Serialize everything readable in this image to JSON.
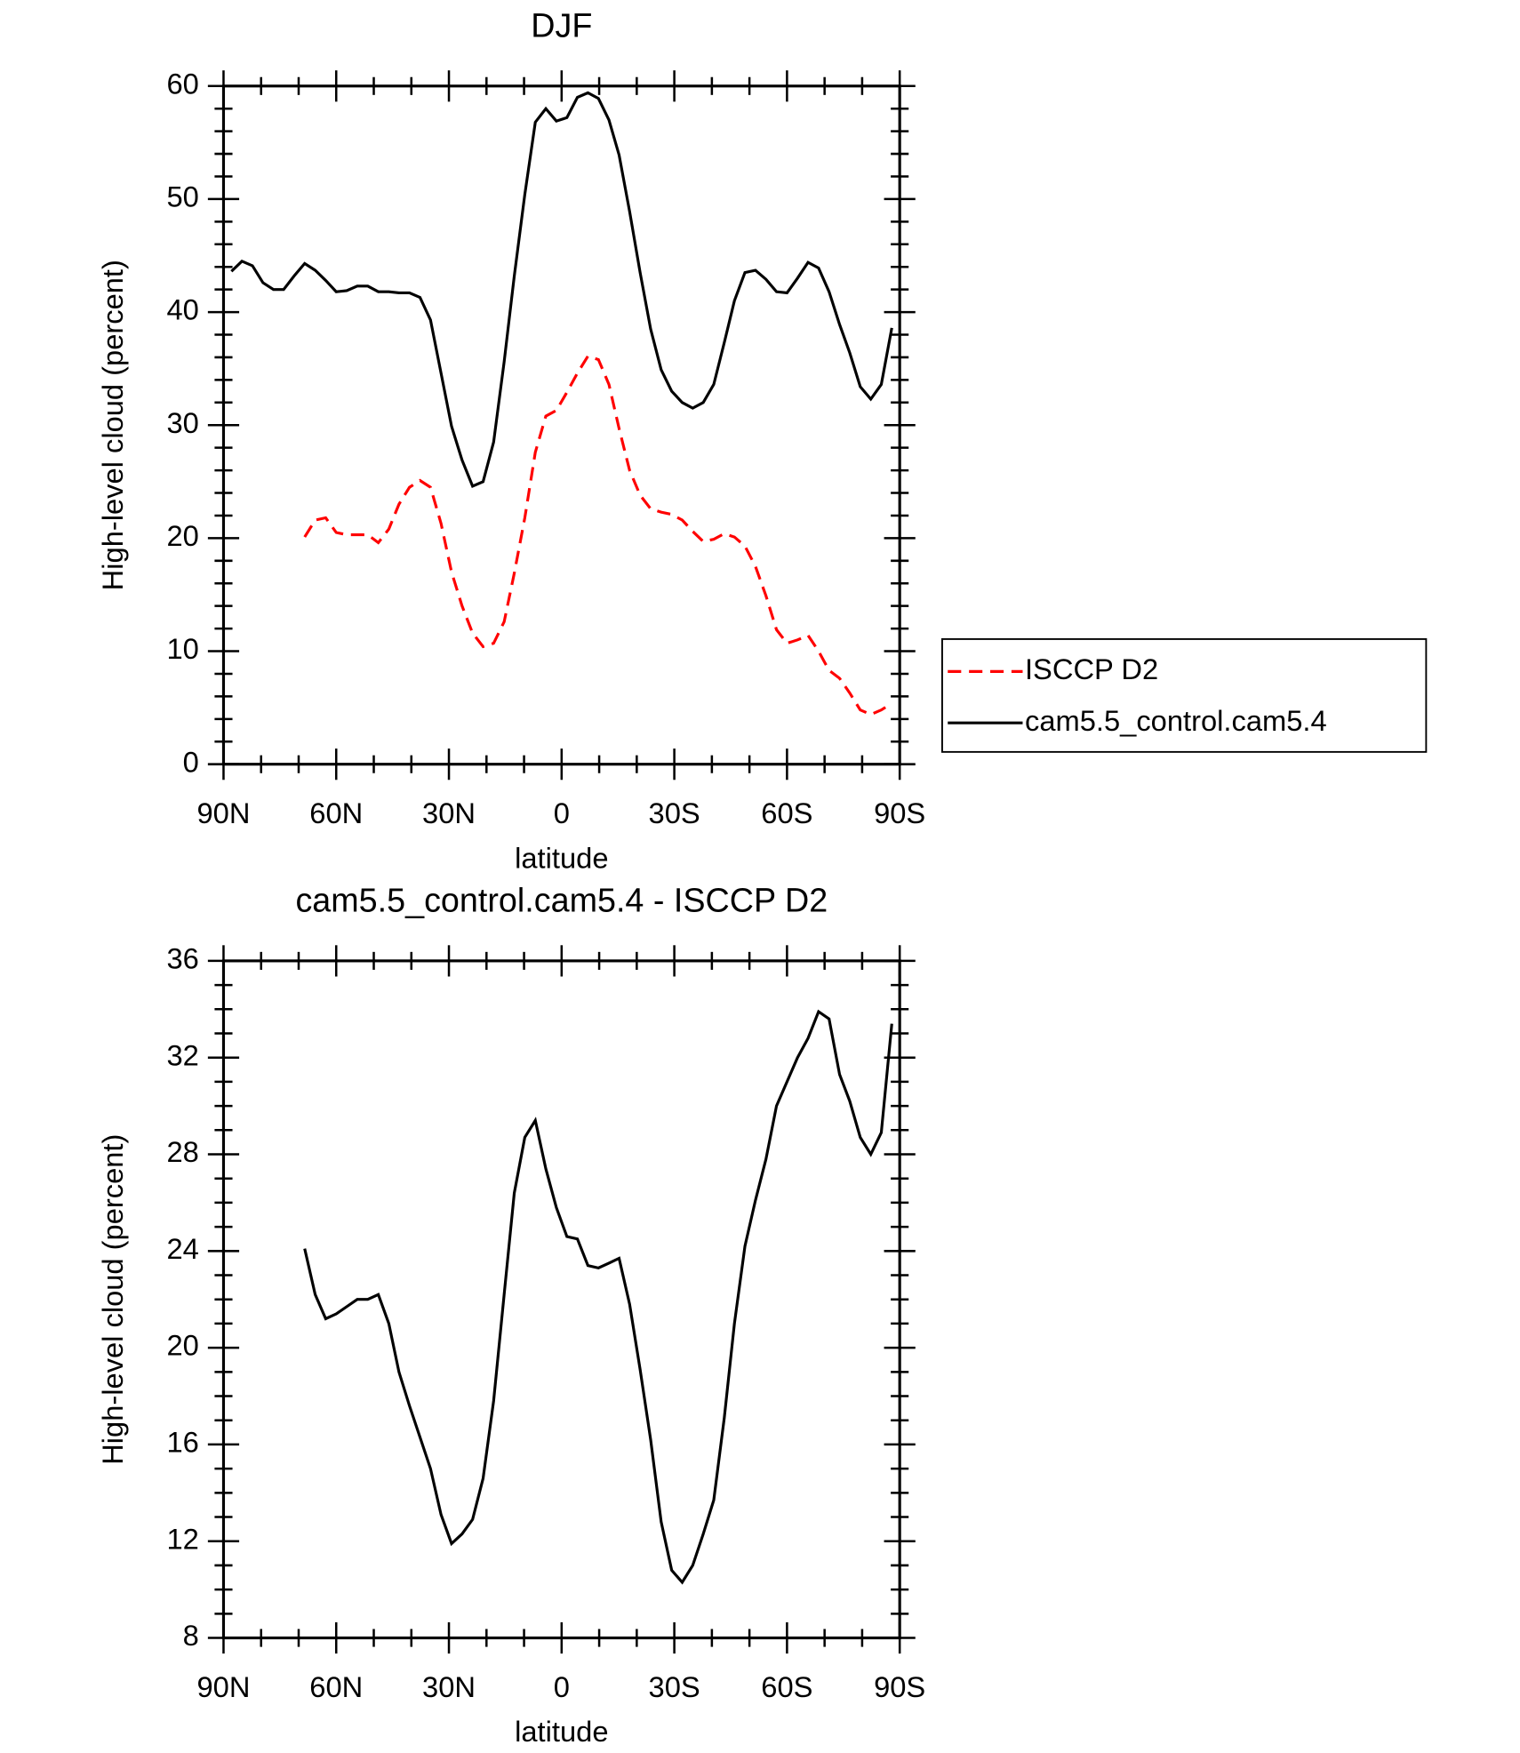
{
  "chart_data": [
    {
      "type": "line",
      "title": "DJF",
      "xlabel": "latitude",
      "ylabel": "High-level cloud (percent)",
      "x": [
        87.9,
        85.1,
        82.3,
        79.5,
        76.7,
        74.0,
        71.2,
        68.4,
        65.6,
        62.8,
        60.0,
        57.2,
        54.4,
        51.6,
        48.8,
        46.0,
        43.3,
        40.5,
        37.7,
        34.9,
        32.1,
        29.3,
        26.5,
        23.7,
        20.9,
        18.1,
        15.3,
        12.6,
        9.8,
        7.0,
        4.2,
        1.4,
        -1.4,
        -4.2,
        -7.0,
        -9.8,
        -12.6,
        -15.3,
        -18.1,
        -20.9,
        -23.7,
        -26.5,
        -29.3,
        -32.1,
        -34.9,
        -37.7,
        -40.5,
        -43.3,
        -46.0,
        -48.8,
        -51.6,
        -54.4,
        -57.2,
        -60.0,
        -62.8,
        -65.6,
        -68.4,
        -71.2,
        -74.0,
        -76.7,
        -79.5,
        -82.3,
        -85.1,
        -87.9
      ],
      "xlim": [
        90,
        -90
      ],
      "xticks": [
        {
          "value": 90,
          "label": "90N"
        },
        {
          "value": 60,
          "label": "60N"
        },
        {
          "value": 30,
          "label": "30N"
        },
        0,
        {
          "value": -30,
          "label": "30S"
        },
        {
          "value": -60,
          "label": "60S"
        },
        {
          "value": -90,
          "label": "90S"
        }
      ],
      "ylim": [
        0,
        60
      ],
      "yticks": [
        0,
        10,
        20,
        30,
        40,
        50,
        60
      ],
      "legend": "right",
      "series": [
        {
          "name": "ISCCP D2",
          "color": "#ff0000",
          "dash": "dashed",
          "values": [
            null,
            null,
            null,
            null,
            null,
            null,
            null,
            20.1,
            21.6,
            21.8,
            20.5,
            20.3,
            20.3,
            20.3,
            19.6,
            20.8,
            23.0,
            24.5,
            25.1,
            24.5,
            21.3,
            17.0,
            14.0,
            11.6,
            10.4,
            10.7,
            12.6,
            16.9,
            21.8,
            27.6,
            30.8,
            31.3,
            32.9,
            34.6,
            36.1,
            35.8,
            33.6,
            29.7,
            26.0,
            23.8,
            22.6,
            22.3,
            22.1,
            21.6,
            20.6,
            19.7,
            19.9,
            20.4,
            20.1,
            19.3,
            17.5,
            14.9,
            11.9,
            10.7,
            11.0,
            11.4,
            10.0,
            8.3,
            7.6,
            6.3,
            4.8,
            4.4,
            4.8,
            5.4
          ]
        },
        {
          "name": "cam5.5_control.cam5.4",
          "color": "#000000",
          "dash": "solid",
          "values": [
            43.6,
            44.5,
            44.1,
            42.6,
            42.0,
            42.0,
            43.2,
            44.3,
            43.7,
            42.8,
            41.8,
            41.9,
            42.3,
            42.3,
            41.8,
            41.8,
            41.7,
            41.7,
            41.3,
            39.3,
            34.6,
            29.9,
            26.9,
            24.6,
            25.0,
            28.5,
            35.6,
            43.2,
            50.4,
            56.8,
            58.0,
            56.9,
            57.2,
            59.0,
            59.4,
            58.9,
            57.0,
            53.9,
            48.9,
            43.5,
            38.5,
            34.9,
            33.0,
            32.0,
            31.5,
            32.0,
            33.6,
            37.3,
            41.0,
            43.5,
            43.7,
            42.9,
            41.8,
            41.7,
            43.0,
            44.4,
            43.9,
            41.8,
            38.9,
            36.4,
            33.4,
            32.3,
            33.6,
            38.6
          ]
        }
      ]
    },
    {
      "type": "line",
      "title": "cam5.5_control.cam5.4 - ISCCP D2",
      "xlabel": "latitude",
      "ylabel": "High-level cloud (percent)",
      "x": [
        87.9,
        85.1,
        82.3,
        79.5,
        76.7,
        74.0,
        71.2,
        68.4,
        65.6,
        62.8,
        60.0,
        57.2,
        54.4,
        51.6,
        48.8,
        46.0,
        43.3,
        40.5,
        37.7,
        34.9,
        32.1,
        29.3,
        26.5,
        23.7,
        20.9,
        18.1,
        15.3,
        12.6,
        9.8,
        7.0,
        4.2,
        1.4,
        -1.4,
        -4.2,
        -7.0,
        -9.8,
        -12.6,
        -15.3,
        -18.1,
        -20.9,
        -23.7,
        -26.5,
        -29.3,
        -32.1,
        -34.9,
        -37.7,
        -40.5,
        -43.3,
        -46.0,
        -48.8,
        -51.6,
        -54.4,
        -57.2,
        -60.0,
        -62.8,
        -65.6,
        -68.4,
        -71.2,
        -74.0,
        -76.7,
        -79.5,
        -82.3,
        -85.1,
        -87.9
      ],
      "xlim": [
        90,
        -90
      ],
      "xticks": [
        {
          "value": 90,
          "label": "90N"
        },
        {
          "value": 60,
          "label": "60N"
        },
        {
          "value": 30,
          "label": "30N"
        },
        0,
        {
          "value": -30,
          "label": "30S"
        },
        {
          "value": -60,
          "label": "60S"
        },
        {
          "value": -90,
          "label": "90S"
        }
      ],
      "ylim": [
        8,
        36
      ],
      "yticks": [
        8,
        12,
        16,
        20,
        24,
        28,
        32,
        36
      ],
      "series": [
        {
          "color": "#000000",
          "dash": "solid",
          "values": [
            null,
            null,
            null,
            null,
            null,
            null,
            null,
            24.1,
            22.2,
            21.2,
            21.4,
            21.7,
            22.0,
            22.0,
            22.2,
            21.0,
            19.0,
            17.6,
            16.3,
            15.0,
            13.1,
            11.9,
            12.3,
            12.9,
            14.6,
            17.8,
            22.2,
            26.4,
            28.7,
            29.4,
            27.4,
            25.8,
            24.6,
            24.5,
            23.4,
            23.3,
            23.5,
            23.7,
            21.8,
            19.1,
            16.2,
            12.8,
            10.8,
            10.3,
            11.0,
            12.3,
            13.7,
            17.1,
            21.0,
            24.2,
            26.1,
            27.8,
            30.0,
            31.0,
            32.0,
            32.8,
            33.9,
            33.6,
            31.3,
            30.2,
            28.7,
            28.0,
            28.9,
            33.4
          ]
        }
      ]
    }
  ]
}
